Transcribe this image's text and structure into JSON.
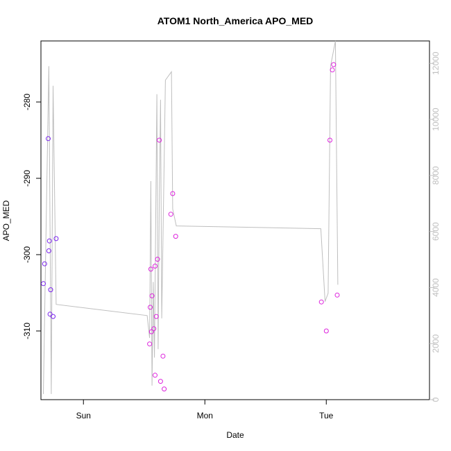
{
  "chart_data": {
    "type": "scatter",
    "title": "ATOM1 North_America APO_MED",
    "xlabel": "Date",
    "ylabel": "APO_MED",
    "x_axis": {
      "unit": "days",
      "range": [
        -0.35,
        2.85
      ],
      "ticks": [
        {
          "value": 0.0,
          "label": "Sun"
        },
        {
          "value": 1.0,
          "label": "Mon"
        },
        {
          "value": 2.0,
          "label": "Tue"
        }
      ]
    },
    "y_axis_left": {
      "range": [
        -319,
        -272
      ],
      "ticks": [
        -280,
        -290,
        -300,
        -310
      ]
    },
    "y_axis_right": {
      "range": [
        0,
        12800
      ],
      "ticks": [
        0,
        2000,
        4000,
        6000,
        8000,
        10000,
        12000
      ]
    },
    "grid": false,
    "colors": {
      "early_points": "#7a22ee",
      "late_points": "#dd22dd",
      "line": "#bebebe",
      "right_axis": "#bfbfbf"
    },
    "points": [
      {
        "x": -0.33,
        "y": -303.8,
        "c": "early_points"
      },
      {
        "x": -0.32,
        "y": -301.2,
        "c": "early_points"
      },
      {
        "x": -0.29,
        "y": -284.8,
        "c": "early_points"
      },
      {
        "x": -0.285,
        "y": -299.5,
        "c": "early_points"
      },
      {
        "x": -0.28,
        "y": -298.2,
        "c": "early_points"
      },
      {
        "x": -0.275,
        "y": -307.8,
        "c": "early_points"
      },
      {
        "x": -0.27,
        "y": -304.6,
        "c": "early_points"
      },
      {
        "x": -0.25,
        "y": -308.1,
        "c": "early_points"
      },
      {
        "x": -0.225,
        "y": -297.9,
        "c": "early_points"
      },
      {
        "x": 0.545,
        "y": -311.7,
        "c": "late_points"
      },
      {
        "x": 0.55,
        "y": -306.9,
        "c": "late_points"
      },
      {
        "x": 0.555,
        "y": -301.9,
        "c": "late_points"
      },
      {
        "x": 0.56,
        "y": -310.1,
        "c": "late_points"
      },
      {
        "x": 0.565,
        "y": -305.4,
        "c": "late_points"
      },
      {
        "x": 0.58,
        "y": -309.7,
        "c": "late_points"
      },
      {
        "x": 0.59,
        "y": -301.5,
        "c": "late_points"
      },
      {
        "x": 0.59,
        "y": -315.8,
        "c": "late_points"
      },
      {
        "x": 0.6,
        "y": -308.1,
        "c": "late_points"
      },
      {
        "x": 0.61,
        "y": -300.6,
        "c": "late_points"
      },
      {
        "x": 0.625,
        "y": -285.0,
        "c": "late_points"
      },
      {
        "x": 0.635,
        "y": -316.6,
        "c": "late_points"
      },
      {
        "x": 0.655,
        "y": -313.3,
        "c": "late_points"
      },
      {
        "x": 0.665,
        "y": -317.6,
        "c": "late_points"
      },
      {
        "x": 0.72,
        "y": -294.7,
        "c": "late_points"
      },
      {
        "x": 0.735,
        "y": -292.0,
        "c": "late_points"
      },
      {
        "x": 0.76,
        "y": -297.6,
        "c": "late_points"
      },
      {
        "x": 1.96,
        "y": -306.2,
        "c": "late_points"
      },
      {
        "x": 2.0,
        "y": -310.0,
        "c": "late_points"
      },
      {
        "x": 2.03,
        "y": -285.0,
        "c": "late_points"
      },
      {
        "x": 2.05,
        "y": -275.8,
        "c": "late_points"
      },
      {
        "x": 2.06,
        "y": -275.1,
        "c": "late_points"
      },
      {
        "x": 2.09,
        "y": -305.3,
        "c": "late_points"
      }
    ],
    "line_series": [
      {
        "x": -0.33,
        "y": 200
      },
      {
        "x": -0.31,
        "y": 5500
      },
      {
        "x": -0.285,
        "y": 11900
      },
      {
        "x": -0.275,
        "y": 6200
      },
      {
        "x": -0.265,
        "y": 200
      },
      {
        "x": -0.25,
        "y": 11200
      },
      {
        "x": -0.225,
        "y": 3400
      },
      {
        "x": 0.525,
        "y": 3000
      },
      {
        "x": 0.545,
        "y": 2200
      },
      {
        "x": 0.555,
        "y": 7800
      },
      {
        "x": 0.565,
        "y": 500
      },
      {
        "x": 0.575,
        "y": 4200
      },
      {
        "x": 0.585,
        "y": 1500
      },
      {
        "x": 0.605,
        "y": 10900
      },
      {
        "x": 0.615,
        "y": 1800
      },
      {
        "x": 0.625,
        "y": 7200
      },
      {
        "x": 0.635,
        "y": 10700
      },
      {
        "x": 0.645,
        "y": 2900
      },
      {
        "x": 0.675,
        "y": 11400
      },
      {
        "x": 0.725,
        "y": 11700
      },
      {
        "x": 0.735,
        "y": 6800
      },
      {
        "x": 0.765,
        "y": 6200
      },
      {
        "x": 1.955,
        "y": 6100
      },
      {
        "x": 1.99,
        "y": 3500
      },
      {
        "x": 2.015,
        "y": 3800
      },
      {
        "x": 2.035,
        "y": 11900
      },
      {
        "x": 2.075,
        "y": 12800
      },
      {
        "x": 2.095,
        "y": 4100
      }
    ]
  }
}
